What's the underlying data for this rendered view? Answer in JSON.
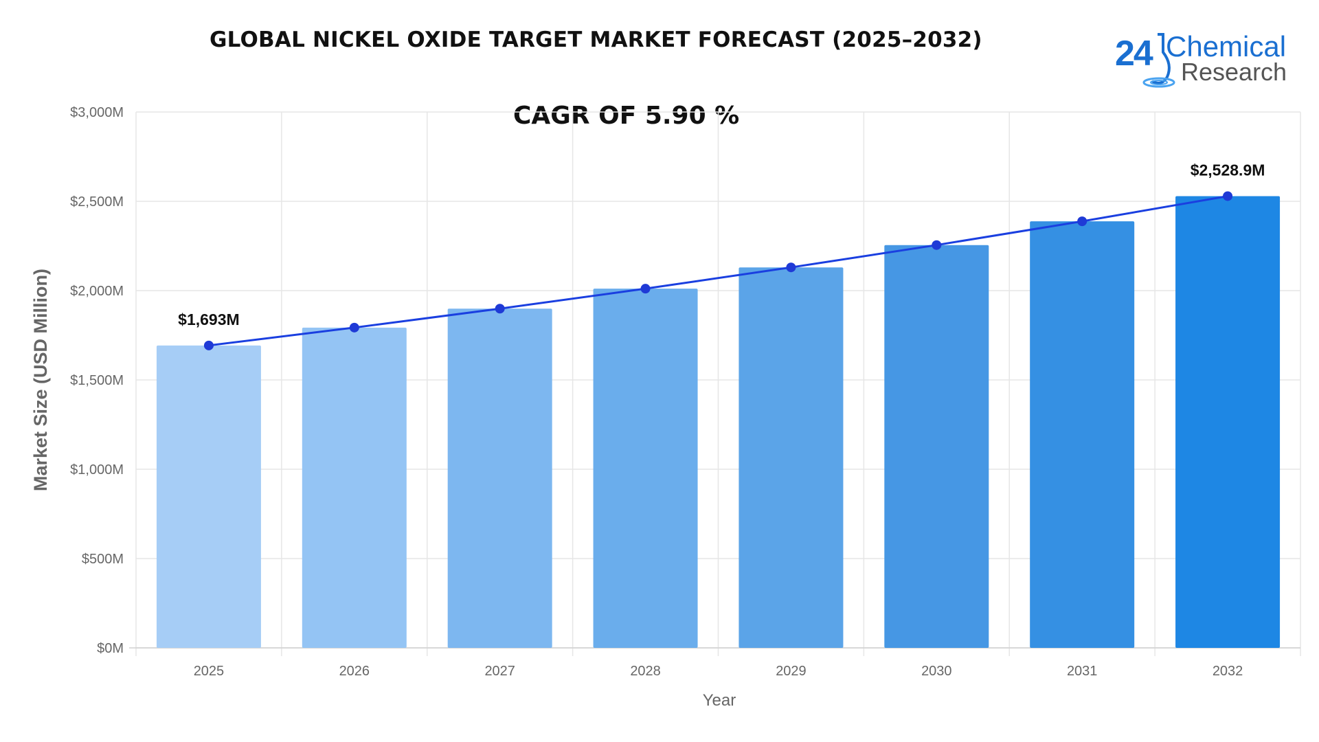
{
  "title": "GLOBAL NICKEL OXIDE TARGET MARKET FORECAST (2025–2032)",
  "subtitle": "CAGR OF 5.90 %",
  "logo": {
    "number": "24",
    "line1": "Chemical",
    "line2": "Research",
    "icon": "flask-ripple-icon"
  },
  "chart_data": {
    "type": "bar",
    "categories": [
      "2025",
      "2026",
      "2027",
      "2028",
      "2029",
      "2030",
      "2031",
      "2032"
    ],
    "values": [
      1693,
      1793,
      1899,
      2011,
      2130,
      2255,
      2388,
      2528.9
    ],
    "line_overlay": true,
    "xlabel": "Year",
    "ylabel": "Market Size (USD Million)",
    "ylim": [
      0,
      3000
    ],
    "yticks": [
      0,
      500,
      1000,
      1500,
      2000,
      2500,
      3000
    ],
    "ytick_labels": [
      "$0M",
      "$500M",
      "$1,000M",
      "$1,500M",
      "$2,000M",
      "$2,500M",
      "$3,000M"
    ],
    "data_labels": [
      {
        "category": "2025",
        "text": "$1,693M"
      },
      {
        "category": "2032",
        "text": "$2,528.9M"
      }
    ],
    "grid": true,
    "bar_colors": [
      "#a6cdf6",
      "#94c4f4",
      "#7db7f0",
      "#6aadec",
      "#5ba4e8",
      "#4697e4",
      "#3590e3",
      "#1e87e4"
    ],
    "line_color": "#1a3fe0",
    "marker_color": "#1f3ad6"
  }
}
